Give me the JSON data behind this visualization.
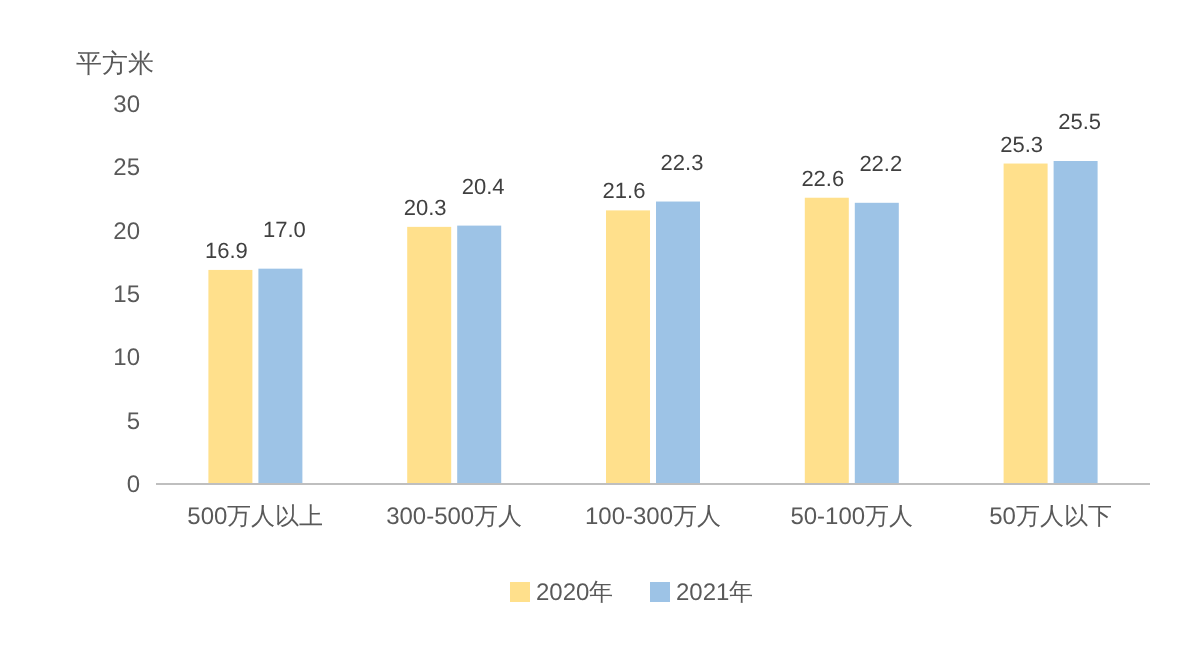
{
  "chart_data": {
    "type": "bar",
    "ylabel": "平方米",
    "categories": [
      "500万人以上",
      "300-500万人",
      "100-300万人",
      "50-100万人",
      "50万人以下"
    ],
    "series": [
      {
        "name": "2020年",
        "color": "#ffe08c",
        "values": [
          16.9,
          20.3,
          21.6,
          22.6,
          25.3
        ],
        "value_labels": [
          "16.9",
          "20.3",
          "21.6",
          "22.6",
          "25.3"
        ]
      },
      {
        "name": "2021年",
        "color": "#9dc3e6",
        "values": [
          17.0,
          20.4,
          22.3,
          22.2,
          25.5
        ],
        "value_labels": [
          "17.0",
          "20.4",
          "22.3",
          "22.2",
          "25.5"
        ]
      }
    ],
    "ylim": [
      0,
      30
    ],
    "yticks": [
      0,
      5,
      10,
      15,
      20,
      25,
      30
    ],
    "legend": "bottom"
  }
}
